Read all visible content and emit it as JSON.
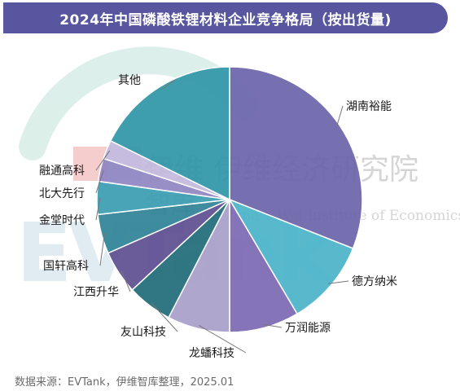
{
  "title": "2024年中国磷酸铁锂材料企业竞争格局（按出货量)",
  "source": "数据来源：EVTank，伊维智库整理，2025.01",
  "watermark": {
    "cn_brand": "伊维",
    "cn_sub": "智库",
    "cn_institute": "伊维经济研究院",
    "en_institute": "China YiWei Institute of Economics",
    "logo_text": "EVTank"
  },
  "chart_data": {
    "type": "pie",
    "title": "2024年中国磷酸铁锂材料企业竞争格局（按出货量)",
    "unit": "%",
    "slices": [
      {
        "label": "湖南裕能",
        "value": 31.0,
        "color": "#6a64a9"
      },
      {
        "label": "德方纳米",
        "value": 10.5,
        "color": "#4ab3c9"
      },
      {
        "label": "万润能源",
        "value": 8.5,
        "color": "#7c68b2"
      },
      {
        "label": "龙蟠科技",
        "value": 7.6,
        "color": "#a89ec9"
      },
      {
        "label": "友山科技",
        "value": 5.5,
        "color": "#1f6b78"
      },
      {
        "label": "江西升华",
        "value": 5.3,
        "color": "#5d4d90"
      },
      {
        "label": "国轩高科",
        "value": 4.8,
        "color": "#2f8297"
      },
      {
        "label": "金堂时代",
        "value": 4.0,
        "color": "#3a9cb1"
      },
      {
        "label": "北大先行",
        "value": 2.8,
        "color": "#8f86c2"
      },
      {
        "label": "融通高科",
        "value": 2.3,
        "color": "#c3b9dd"
      },
      {
        "label": "其他",
        "value": 17.7,
        "color": "#2f96a6"
      }
    ]
  }
}
